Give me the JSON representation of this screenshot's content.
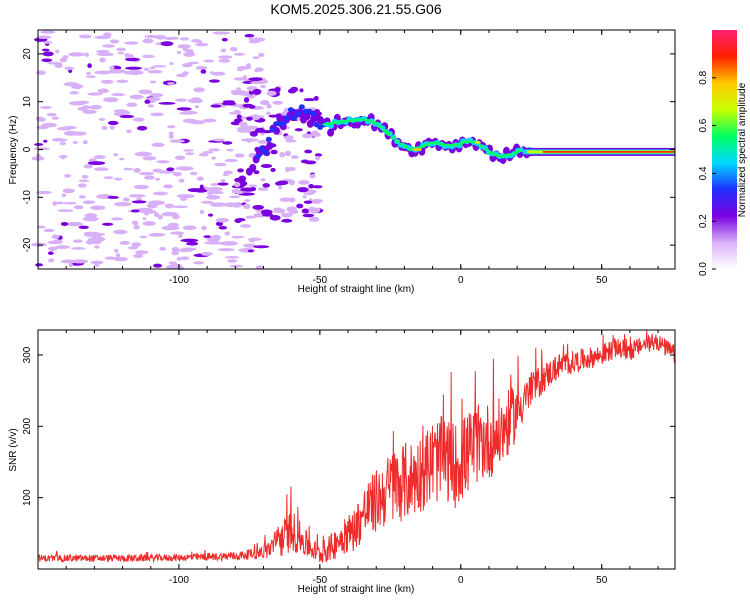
{
  "title": "KOM5.2025.306.21.55.G06",
  "chart_data": [
    {
      "type": "heatmap",
      "xlabel": "Height of straight line (km)",
      "ylabel": "Frequency (Hz)",
      "xlim": [
        -150,
        76
      ],
      "ylim": [
        -25,
        25
      ],
      "xticks": [
        -100,
        -50,
        0,
        50
      ],
      "yticks": [
        -20,
        -10,
        0,
        10,
        20
      ],
      "colorbar": {
        "label": "Normalized spectral amplitude",
        "range": [
          0.0,
          1.0
        ],
        "ticks": [
          0.0,
          0.2,
          0.4,
          0.6,
          0.8
        ],
        "tick_labels": [
          "0.0",
          "0.2",
          "0.4",
          "0.6",
          "0.8"
        ],
        "colors": [
          "#ffffff",
          "#d8b0f8",
          "#7a00e0",
          "#1f30ff",
          "#00d8ff",
          "#00ff60",
          "#c8ff00",
          "#ffc800",
          "#ff2000",
          "#ff2070"
        ]
      },
      "trace_center_freq": [
        {
          "x": -75,
          "y": -5
        },
        {
          "x": -70,
          "y": 0
        },
        {
          "x": -66,
          "y": 4
        },
        {
          "x": -62,
          "y": 6
        },
        {
          "x": -58,
          "y": 8
        },
        {
          "x": -54,
          "y": 7
        },
        {
          "x": -50,
          "y": 5
        },
        {
          "x": -46,
          "y": 5.5
        },
        {
          "x": -40,
          "y": 6
        },
        {
          "x": -34,
          "y": 6.3
        },
        {
          "x": -30,
          "y": 5.5
        },
        {
          "x": -26,
          "y": 3.5
        },
        {
          "x": -22,
          "y": 1.5
        },
        {
          "x": -18,
          "y": 0
        },
        {
          "x": -14,
          "y": 0.5
        },
        {
          "x": -10,
          "y": 1.5
        },
        {
          "x": -6,
          "y": 1
        },
        {
          "x": -2,
          "y": 0.8
        },
        {
          "x": 2,
          "y": 1.7
        },
        {
          "x": 6,
          "y": 1.5
        },
        {
          "x": 10,
          "y": -0.5
        },
        {
          "x": 14,
          "y": -1.5
        },
        {
          "x": 18,
          "y": -1
        },
        {
          "x": 22,
          "y": 0
        },
        {
          "x": 26,
          "y": -0.5
        },
        {
          "x": 30,
          "y": -0.4
        },
        {
          "x": 50,
          "y": -0.5
        },
        {
          "x": 76,
          "y": -0.5
        }
      ]
    },
    {
      "type": "line",
      "xlabel": "Height of straight line (km)",
      "ylabel": "SNR (v/v)",
      "xlim": [
        -150,
        76
      ],
      "ylim": [
        0,
        335
      ],
      "xticks": [
        -100,
        -50,
        0,
        50
      ],
      "yticks": [
        100,
        200,
        300
      ],
      "series": [
        {
          "name": "SNR",
          "color": "#ee2b2b",
          "envelope": {
            "x": [
              -150,
              -120,
              -100,
              -80,
              -72,
              -68,
              -64,
              -60,
              -55,
              -50,
              -46,
              -42,
              -38,
              -34,
              -30,
              -26,
              -22,
              -18,
              -14,
              -10,
              -6,
              -2,
              2,
              6,
              10,
              14,
              18,
              22,
              26,
              30,
              35,
              40,
              45,
              50,
              55,
              60,
              65,
              70,
              76
            ],
            "mean": [
              15,
              15,
              16,
              18,
              22,
              28,
              40,
              55,
              35,
              20,
              30,
              45,
              55,
              80,
              95,
              110,
              120,
              125,
              135,
              150,
              155,
              145,
              160,
              175,
              180,
              190,
              210,
              235,
              255,
              270,
              285,
              290,
              295,
              300,
              310,
              305,
              315,
              318,
              300
            ],
            "noise": [
              5,
              5,
              5,
              6,
              8,
              15,
              25,
              30,
              20,
              12,
              20,
              25,
              30,
              40,
              45,
              50,
              55,
              55,
              55,
              60,
              60,
              60,
              60,
              55,
              55,
              50,
              45,
              30,
              25,
              20,
              18,
              16,
              15,
              15,
              14,
              14,
              12,
              12,
              14
            ]
          }
        }
      ]
    }
  ]
}
